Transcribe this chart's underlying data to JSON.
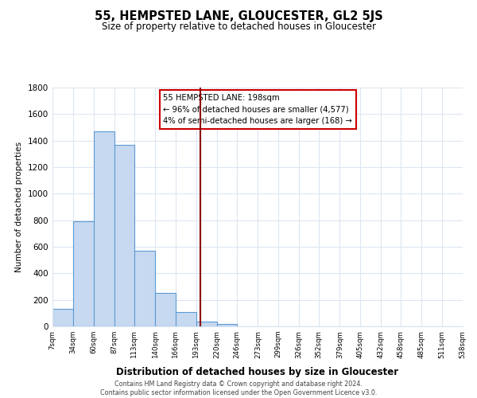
{
  "title": "55, HEMPSTED LANE, GLOUCESTER, GL2 5JS",
  "subtitle": "Size of property relative to detached houses in Gloucester",
  "xlabel": "Distribution of detached houses by size in Gloucester",
  "ylabel": "Number of detached properties",
  "bin_edges": [
    7,
    34,
    60,
    87,
    113,
    140,
    166,
    193,
    220,
    246,
    273,
    299,
    326,
    352,
    379,
    405,
    432,
    458,
    485,
    511,
    538
  ],
  "bar_heights": [
    130,
    790,
    1470,
    1370,
    570,
    250,
    110,
    35,
    20,
    0,
    0,
    0,
    0,
    0,
    0,
    0,
    0,
    0,
    0,
    0
  ],
  "bar_color": "#c6d9f0",
  "bar_edge_color": "#5b9bd5",
  "vline_x": 198,
  "vline_color": "#8b0000",
  "annotation_title": "55 HEMPSTED LANE: 198sqm",
  "annotation_line1": "← 96% of detached houses are smaller (4,577)",
  "annotation_line2": "4% of semi-detached houses are larger (168) →",
  "annotation_box_color": "white",
  "annotation_box_edge": "#cc0000",
  "ylim": [
    0,
    1800
  ],
  "yticks": [
    0,
    200,
    400,
    600,
    800,
    1000,
    1200,
    1400,
    1600,
    1800
  ],
  "tick_labels": [
    "7sqm",
    "34sqm",
    "60sqm",
    "87sqm",
    "113sqm",
    "140sqm",
    "166sqm",
    "193sqm",
    "220sqm",
    "246sqm",
    "273sqm",
    "299sqm",
    "326sqm",
    "352sqm",
    "379sqm",
    "405sqm",
    "432sqm",
    "458sqm",
    "485sqm",
    "511sqm",
    "538sqm"
  ],
  "footer_line1": "Contains HM Land Registry data © Crown copyright and database right 2024.",
  "footer_line2": "Contains public sector information licensed under the Open Government Licence v3.0.",
  "background_color": "#ffffff",
  "grid_color": "#dce6f1"
}
